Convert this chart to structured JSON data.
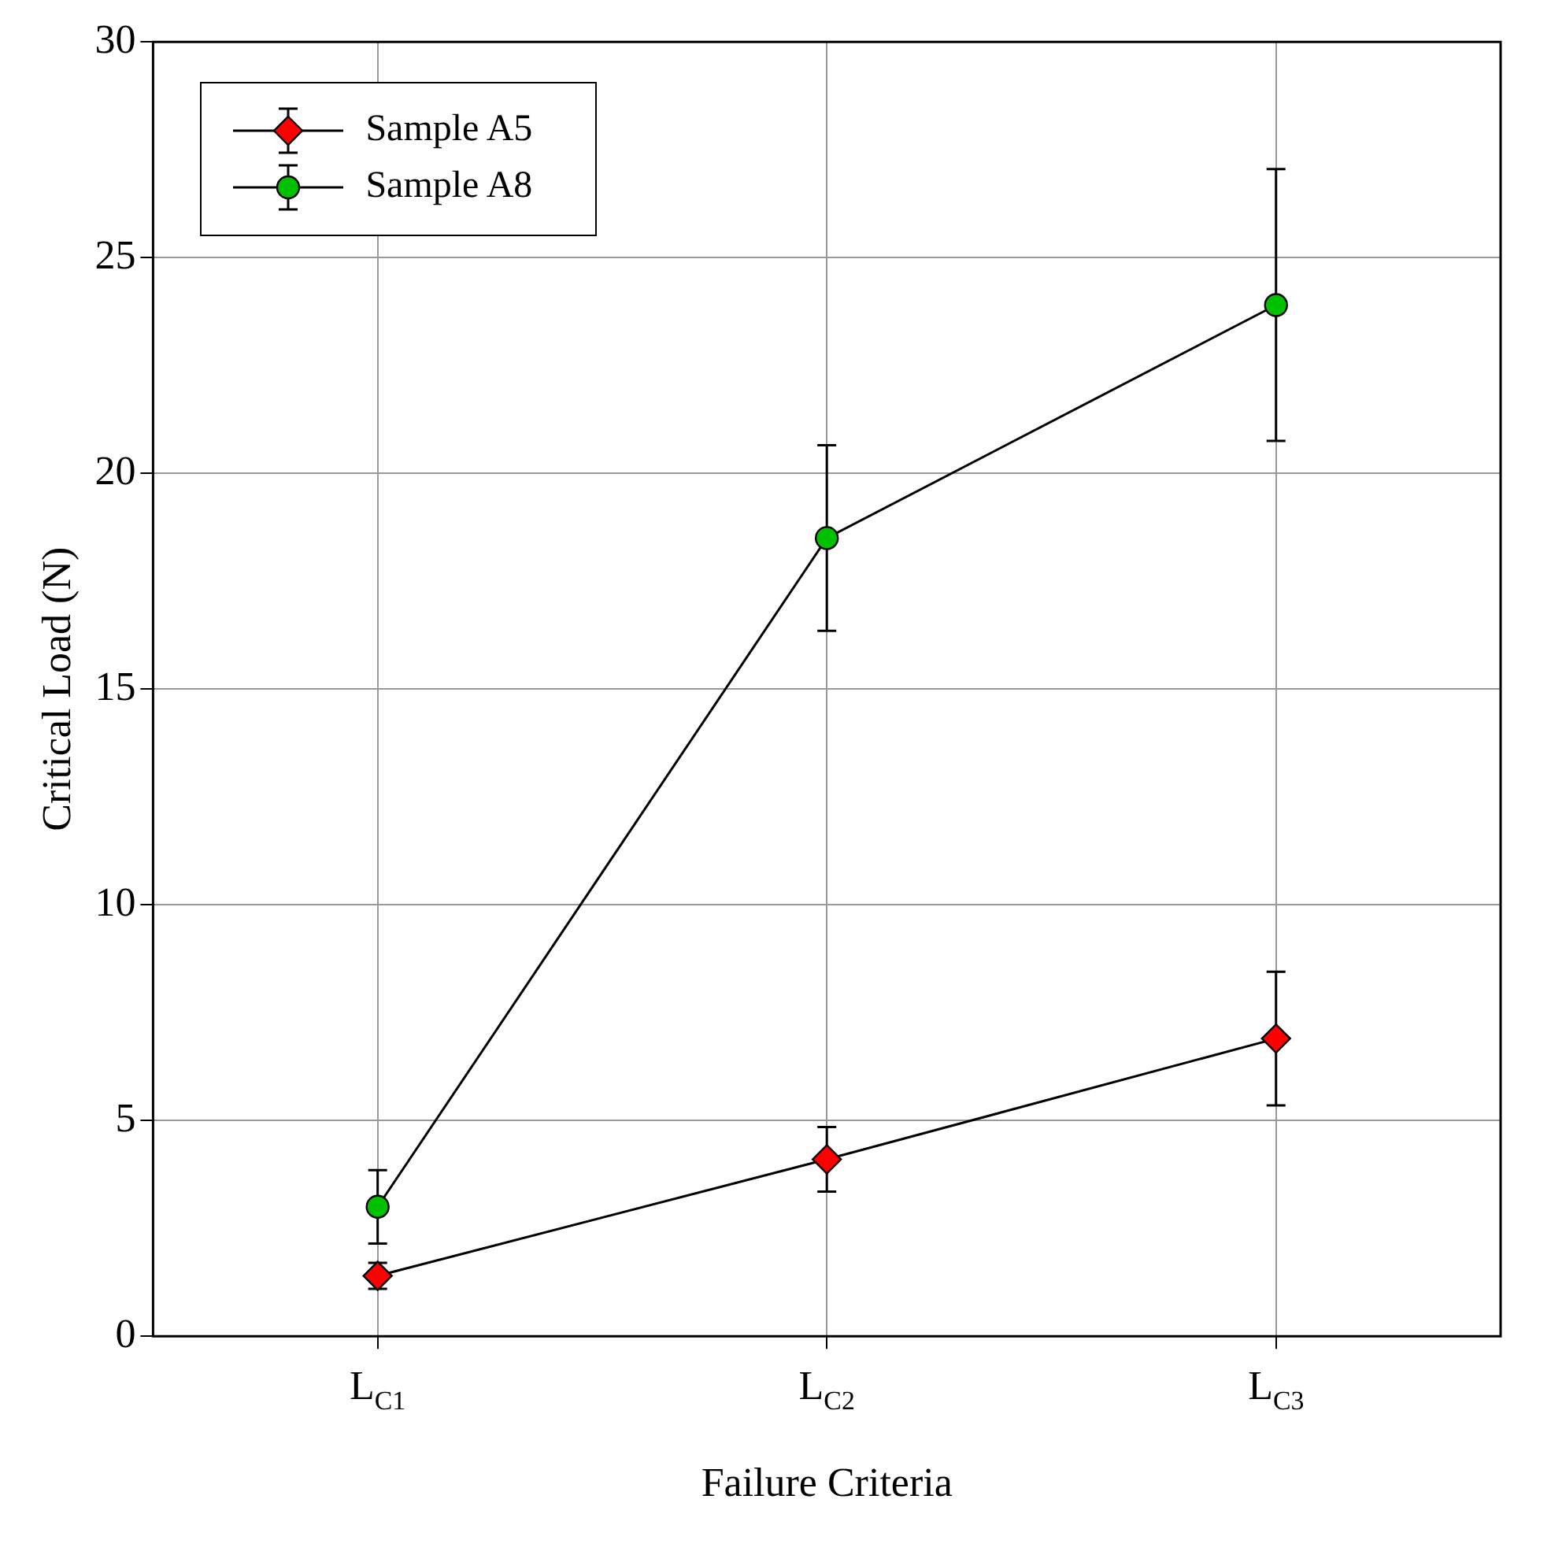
{
  "chart_data": {
    "type": "line",
    "xlabel": "Failure Criteria",
    "ylabel": "Critical Load (N)",
    "categories": [
      "L$_{C1}$",
      "L$_{C2}$",
      "L$_{C3}$"
    ],
    "ylim": [
      0,
      30
    ],
    "yticks": [
      0,
      5,
      10,
      15,
      20,
      25,
      30
    ],
    "grid": true,
    "legend": "top left",
    "series": [
      {
        "name": "Sample A5",
        "color": "#ff0000",
        "marker": "diamond",
        "values": [
          1.4,
          4.1,
          6.9
        ],
        "errors": [
          0.3,
          0.75,
          1.55
        ]
      },
      {
        "name": "Sample A8",
        "color": "#00c000",
        "marker": "circle",
        "values": [
          3.0,
          18.5,
          23.9
        ],
        "errors": [
          0.85,
          2.15,
          3.15
        ]
      }
    ]
  }
}
